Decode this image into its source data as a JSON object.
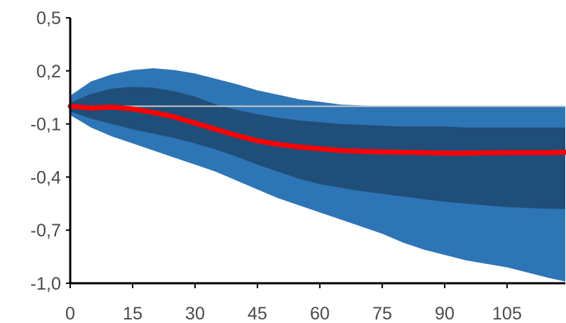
{
  "chart_data": {
    "type": "area",
    "title": "",
    "xlabel": "",
    "ylabel": "",
    "xlim": [
      0,
      119
    ],
    "ylim": [
      -1.0,
      0.5
    ],
    "x_ticks": [
      0,
      15,
      30,
      45,
      60,
      75,
      90,
      105
    ],
    "x_tick_labels": [
      "0",
      "15",
      "30",
      "45",
      "60",
      "75",
      "90",
      "105"
    ],
    "y_ticks": [
      0.5,
      0.2,
      -0.1,
      -0.4,
      -0.7,
      -1.0
    ],
    "y_tick_labels": [
      "0,5",
      "0,2",
      "-0,1",
      "-0,4",
      "-0,7",
      "-1,0"
    ],
    "grid": false,
    "legend": "none",
    "reference_line": 0.0,
    "x": [
      0,
      5,
      10,
      15,
      20,
      25,
      30,
      35,
      40,
      45,
      50,
      55,
      60,
      65,
      70,
      75,
      80,
      85,
      90,
      95,
      100,
      105,
      110,
      115,
      119
    ],
    "series": [
      {
        "values": [
          0.0,
          -0.01,
          -0.005,
          -0.015,
          -0.035,
          -0.06,
          -0.095,
          -0.13,
          -0.165,
          -0.195,
          -0.215,
          -0.23,
          -0.24,
          -0.25,
          -0.255,
          -0.258,
          -0.26,
          -0.262,
          -0.265,
          -0.265,
          -0.263,
          -0.262,
          -0.262,
          -0.262,
          -0.26
        ],
        "color": "#ff0000"
      }
    ],
    "bands": [
      {
        "level": "outer",
        "upper": [
          0.06,
          0.14,
          0.18,
          0.205,
          0.215,
          0.205,
          0.185,
          0.155,
          0.125,
          0.09,
          0.065,
          0.04,
          0.025,
          0.01,
          0.005,
          0.0,
          0.0,
          0.0,
          0.0,
          0.0,
          0.0,
          0.0,
          0.0,
          0.0,
          0.0
        ],
        "lower": [
          -0.05,
          -0.12,
          -0.17,
          -0.21,
          -0.25,
          -0.29,
          -0.33,
          -0.37,
          -0.42,
          -0.47,
          -0.52,
          -0.56,
          -0.6,
          -0.64,
          -0.68,
          -0.72,
          -0.77,
          -0.81,
          -0.84,
          -0.87,
          -0.89,
          -0.91,
          -0.94,
          -0.97,
          -0.99
        ],
        "color": "#2e75b6"
      },
      {
        "level": "inner",
        "upper": [
          0.02,
          0.07,
          0.1,
          0.11,
          0.105,
          0.085,
          0.055,
          0.01,
          -0.02,
          -0.045,
          -0.065,
          -0.08,
          -0.09,
          -0.1,
          -0.105,
          -0.11,
          -0.115,
          -0.115,
          -0.115,
          -0.12,
          -0.12,
          -0.12,
          -0.12,
          -0.12,
          -0.12
        ],
        "lower": [
          -0.03,
          -0.07,
          -0.1,
          -0.13,
          -0.155,
          -0.18,
          -0.21,
          -0.245,
          -0.285,
          -0.33,
          -0.37,
          -0.41,
          -0.44,
          -0.46,
          -0.48,
          -0.495,
          -0.51,
          -0.525,
          -0.54,
          -0.55,
          -0.56,
          -0.57,
          -0.575,
          -0.58,
          -0.58
        ],
        "color": "#1f4e79"
      }
    ]
  }
}
